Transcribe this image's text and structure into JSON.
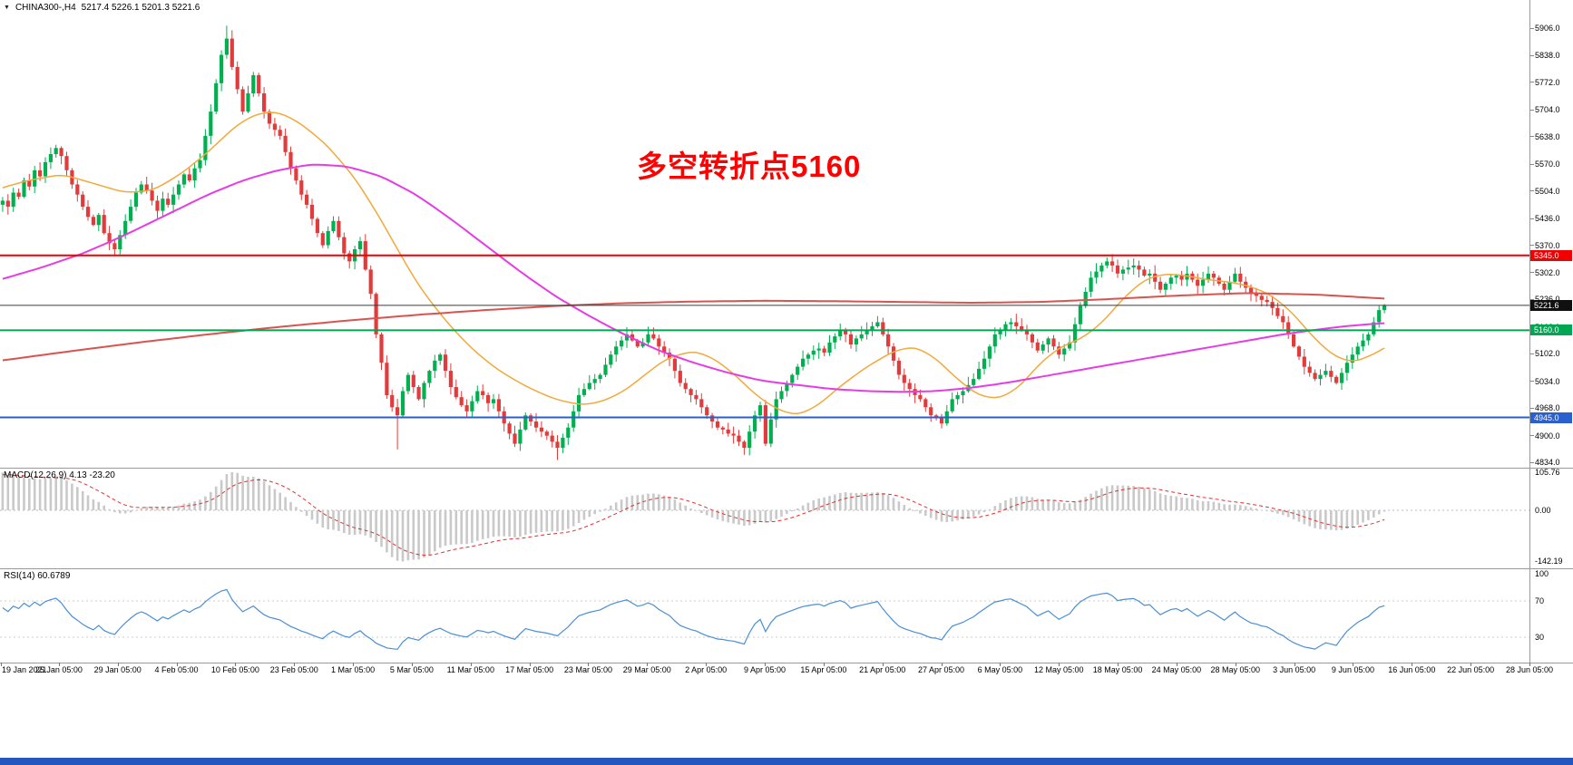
{
  "header": {
    "expander_icon": "▼",
    "symbol_timeframe": "CHINA300-,H4",
    "ohlc": "5217.4 5226.1 5201.3 5221.6"
  },
  "annotation": {
    "text": "多空转折点5160",
    "color": "#ff0000"
  },
  "colors": {
    "background": "#ffffff",
    "candle_up": "#00b050",
    "candle_down": "#e23b3b",
    "macd_histogram": "#c9c9c9",
    "macd_signal": "#e03131",
    "rsi_line": "#4a8fd4",
    "separator": "#9a9a9a",
    "taskbar": "#2456c0",
    "axis_text": "#000000"
  },
  "price_axis": {
    "labels": [
      "5906.0",
      "5838.0",
      "5772.0",
      "5704.0",
      "5638.0",
      "5570.0",
      "5504.0",
      "5436.0",
      "5370.0",
      "5302.0",
      "5236.0",
      "5168.0",
      "5102.0",
      "5034.0",
      "4968.0",
      "4900.0",
      "4834.0"
    ]
  },
  "time_axis": {
    "labels": [
      "19 Jan 2021",
      "25 Jan 05:00",
      "29 Jan 05:00",
      "4 Feb 05:00",
      "10 Feb 05:00",
      "23 Feb 05:00",
      "1 Mar 05:00",
      "5 Mar 05:00",
      "11 Mar 05:00",
      "17 Mar 05:00",
      "23 Mar 05:00",
      "29 Mar 05:00",
      "2 Apr 05:00",
      "9 Apr 05:00",
      "15 Apr 05:00",
      "21 Apr 05:00",
      "27 Apr 05:00",
      "6 May 05:00",
      "12 May 05:00",
      "18 May 05:00",
      "24 May 05:00",
      "28 May 05:00",
      "3 Jun 05:00",
      "9 Jun 05:00",
      "16 Jun 05:00",
      "22 Jun 05:00",
      "28 Jun 05:00"
    ]
  },
  "indicators": {
    "macd": {
      "name": "MACD",
      "params": "12,26,9",
      "label": "MACD(12,26,9) 4.13 -23.20",
      "values": [
        "4.13",
        "-23.20"
      ],
      "axis_labels": [
        "105.76",
        "0.00",
        "-142.19"
      ]
    },
    "rsi": {
      "name": "RSI",
      "params": "14",
      "label": "RSI(14) 60.6789",
      "value": "60.6789",
      "axis_labels": [
        "100",
        "70",
        "30"
      ],
      "levels": [
        70,
        30
      ]
    }
  },
  "chart_data": {
    "type": "candlestick",
    "symbol": "CHINA300-",
    "timeframe": "H4",
    "ohlc_current": {
      "open": 5217.4,
      "high": 5226.1,
      "low": 5201.3,
      "close": 5221.6
    },
    "ylim": [
      4834.0,
      5906.0
    ],
    "time_range": {
      "start": "19 Jan 2021",
      "end": "28 Jun 2021 05:00"
    },
    "first_open": 5470,
    "closes": [
      5480,
      5465,
      5500,
      5490,
      5530,
      5515,
      5555,
      5540,
      5575,
      5595,
      5610,
      5590,
      5555,
      5520,
      5495,
      5465,
      5440,
      5420,
      5445,
      5400,
      5375,
      5360,
      5395,
      5430,
      5465,
      5500,
      5520,
      5505,
      5480,
      5455,
      5485,
      5470,
      5495,
      5520,
      5545,
      5530,
      5560,
      5580,
      5640,
      5700,
      5770,
      5840,
      5880,
      5810,
      5755,
      5700,
      5745,
      5790,
      5745,
      5700,
      5670,
      5655,
      5640,
      5600,
      5560,
      5530,
      5495,
      5470,
      5435,
      5400,
      5370,
      5405,
      5430,
      5390,
      5350,
      5330,
      5360,
      5380,
      5310,
      5250,
      5150,
      5080,
      5000,
      4970,
      4950,
      5010,
      5050,
      5020,
      4990,
      5030,
      5060,
      5085,
      5100,
      5060,
      5020,
      4995,
      4975,
      4960,
      4985,
      5010,
      5000,
      4980,
      4990,
      4960,
      4930,
      4905,
      4880,
      4915,
      4950,
      4935,
      4920,
      4910,
      4900,
      4885,
      4870,
      4895,
      4920,
      4960,
      5000,
      5015,
      5030,
      5040,
      5050,
      5075,
      5100,
      5120,
      5135,
      5150,
      5135,
      5120,
      5130,
      5150,
      5140,
      5120,
      5105,
      5090,
      5060,
      5030,
      5015,
      5000,
      4990,
      4970,
      4950,
      4935,
      4920,
      4915,
      4905,
      4900,
      4885,
      4870,
      4910,
      4950,
      4975,
      4880,
      4940,
      4990,
      5010,
      5030,
      5050,
      5070,
      5090,
      5100,
      5110,
      5115,
      5105,
      5130,
      5145,
      5160,
      5150,
      5125,
      5140,
      5150,
      5160,
      5170,
      5180,
      5150,
      5120,
      5085,
      5050,
      5030,
      5015,
      5000,
      4990,
      4970,
      4950,
      4945,
      4930,
      4960,
      4990,
      5000,
      5010,
      5025,
      5040,
      5065,
      5090,
      5120,
      5150,
      5160,
      5175,
      5180,
      5170,
      5160,
      5150,
      5130,
      5110,
      5125,
      5140,
      5120,
      5100,
      5115,
      5130,
      5175,
      5220,
      5255,
      5290,
      5305,
      5320,
      5330,
      5320,
      5300,
      5310,
      5315,
      5320,
      5310,
      5295,
      5300,
      5280,
      5260,
      5275,
      5290,
      5295,
      5285,
      5300,
      5285,
      5270,
      5285,
      5300,
      5290,
      5275,
      5260,
      5280,
      5300,
      5280,
      5265,
      5250,
      5245,
      5235,
      5230,
      5215,
      5195,
      5180,
      5150,
      5120,
      5095,
      5070,
      5055,
      5040,
      5050,
      5060,
      5045,
      5030,
      5055,
      5080,
      5100,
      5120,
      5135,
      5150,
      5180,
      5210,
      5221.6
    ],
    "wick_overrides": {
      "42": {
        "high": 5912
      },
      "74": {
        "low": 4866
      },
      "96": {
        "low": 4872
      },
      "104": {
        "low": 4840
      },
      "143": {
        "low": 4874
      },
      "176": {
        "low": 4918
      }
    },
    "horizontal_lines": [
      {
        "name": "resistance-line",
        "price": 5345.0,
        "label": "5345.0",
        "color": "#f00000",
        "type": "hline"
      },
      {
        "name": "current-price-line",
        "price": 5221.6,
        "label": "5221.6",
        "color": "#3a3a3a",
        "tag_color": "#101010",
        "type": "current_price"
      },
      {
        "name": "pivot-line",
        "price": 5160.0,
        "label": "5160.0",
        "color": "#00a651",
        "type": "hline"
      },
      {
        "name": "support-line",
        "price": 4945.0,
        "label": "4945.0",
        "color": "#2a5fd0",
        "type": "hline"
      }
    ],
    "moving_averages": [
      {
        "name": "ma-fast",
        "color": "#f2a93b",
        "width": 1.5,
        "points": [
          [
            0,
            5510
          ],
          [
            0.02,
            5530
          ],
          [
            0.045,
            5545
          ],
          [
            0.07,
            5520
          ],
          [
            0.09,
            5500
          ],
          [
            0.11,
            5505
          ],
          [
            0.13,
            5545
          ],
          [
            0.15,
            5600
          ],
          [
            0.17,
            5665
          ],
          [
            0.185,
            5695
          ],
          [
            0.2,
            5700
          ],
          [
            0.215,
            5675
          ],
          [
            0.235,
            5620
          ],
          [
            0.255,
            5540
          ],
          [
            0.27,
            5460
          ],
          [
            0.285,
            5370
          ],
          [
            0.3,
            5280
          ],
          [
            0.315,
            5210
          ],
          [
            0.33,
            5150
          ],
          [
            0.345,
            5100
          ],
          [
            0.36,
            5060
          ],
          [
            0.38,
            5020
          ],
          [
            0.4,
            4990
          ],
          [
            0.42,
            4975
          ],
          [
            0.435,
            4985
          ],
          [
            0.45,
            5010
          ],
          [
            0.465,
            5050
          ],
          [
            0.48,
            5090
          ],
          [
            0.5,
            5110
          ],
          [
            0.515,
            5090
          ],
          [
            0.53,
            5050
          ],
          [
            0.545,
            5000
          ],
          [
            0.56,
            4965
          ],
          [
            0.575,
            4950
          ],
          [
            0.59,
            4975
          ],
          [
            0.605,
            5020
          ],
          [
            0.625,
            5070
          ],
          [
            0.645,
            5110
          ],
          [
            0.66,
            5120
          ],
          [
            0.675,
            5090
          ],
          [
            0.69,
            5040
          ],
          [
            0.705,
            5000
          ],
          [
            0.72,
            4990
          ],
          [
            0.735,
            5020
          ],
          [
            0.75,
            5080
          ],
          [
            0.765,
            5120
          ],
          [
            0.78,
            5140
          ],
          [
            0.795,
            5180
          ],
          [
            0.81,
            5240
          ],
          [
            0.825,
            5285
          ],
          [
            0.84,
            5300
          ],
          [
            0.855,
            5295
          ],
          [
            0.87,
            5285
          ],
          [
            0.885,
            5280
          ],
          [
            0.9,
            5270
          ],
          [
            0.915,
            5250
          ],
          [
            0.93,
            5210
          ],
          [
            0.945,
            5150
          ],
          [
            0.96,
            5100
          ],
          [
            0.975,
            5080
          ],
          [
            0.99,
            5100
          ],
          [
            1,
            5120
          ]
        ]
      },
      {
        "name": "ma-mid",
        "color": "#e53ce5",
        "width": 2,
        "points": [
          [
            0,
            5285
          ],
          [
            0.03,
            5315
          ],
          [
            0.06,
            5350
          ],
          [
            0.09,
            5395
          ],
          [
            0.12,
            5445
          ],
          [
            0.15,
            5495
          ],
          [
            0.175,
            5530
          ],
          [
            0.2,
            5555
          ],
          [
            0.225,
            5570
          ],
          [
            0.25,
            5565
          ],
          [
            0.275,
            5540
          ],
          [
            0.3,
            5495
          ],
          [
            0.325,
            5435
          ],
          [
            0.35,
            5370
          ],
          [
            0.375,
            5305
          ],
          [
            0.4,
            5245
          ],
          [
            0.425,
            5195
          ],
          [
            0.45,
            5150
          ],
          [
            0.475,
            5110
          ],
          [
            0.5,
            5080
          ],
          [
            0.525,
            5055
          ],
          [
            0.55,
            5035
          ],
          [
            0.575,
            5025
          ],
          [
            0.6,
            5015
          ],
          [
            0.625,
            5010
          ],
          [
            0.65,
            5008
          ],
          [
            0.675,
            5010
          ],
          [
            0.7,
            5018
          ],
          [
            0.725,
            5030
          ],
          [
            0.75,
            5045
          ],
          [
            0.775,
            5060
          ],
          [
            0.8,
            5075
          ],
          [
            0.825,
            5090
          ],
          [
            0.85,
            5105
          ],
          [
            0.875,
            5120
          ],
          [
            0.9,
            5135
          ],
          [
            0.925,
            5150
          ],
          [
            0.95,
            5162
          ],
          [
            0.975,
            5172
          ],
          [
            1,
            5178
          ]
        ]
      },
      {
        "name": "ma-slow",
        "color": "#d9534f",
        "width": 2,
        "points": [
          [
            0,
            5085
          ],
          [
            0.05,
            5108
          ],
          [
            0.1,
            5130
          ],
          [
            0.15,
            5150
          ],
          [
            0.2,
            5168
          ],
          [
            0.25,
            5184
          ],
          [
            0.3,
            5198
          ],
          [
            0.35,
            5210
          ],
          [
            0.4,
            5220
          ],
          [
            0.45,
            5227
          ],
          [
            0.5,
            5231
          ],
          [
            0.55,
            5233
          ],
          [
            0.6,
            5232
          ],
          [
            0.65,
            5230
          ],
          [
            0.7,
            5228
          ],
          [
            0.75,
            5230
          ],
          [
            0.8,
            5237
          ],
          [
            0.85,
            5246
          ],
          [
            0.9,
            5252
          ],
          [
            0.95,
            5248
          ],
          [
            1,
            5238
          ]
        ]
      }
    ]
  }
}
